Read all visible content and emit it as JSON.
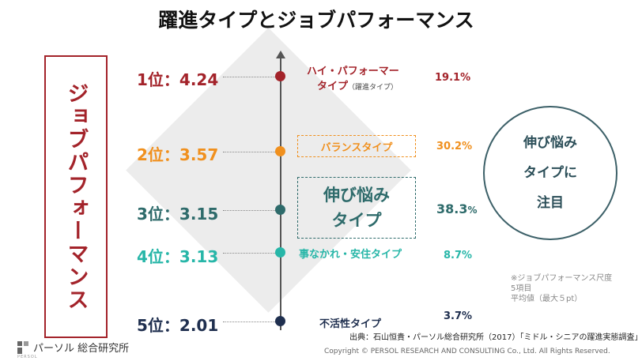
{
  "title": "躍進タイプとジョブパフォーマンス",
  "left_label": "ジョブパフォーマンス",
  "colors": {
    "rank1": "#a3232a",
    "rank2": "#f0901e",
    "rank3": "#2e6b6b",
    "rank4": "#27b6a8",
    "rank5": "#1f2f4f"
  },
  "rows": [
    {
      "rank": "1位：4.24",
      "type_line1": "ハイ・パフォーマー",
      "type_line2": "タイプ",
      "type_note": "（躍進タイプ）",
      "pct": "19.1%"
    },
    {
      "rank": "2位：3.57",
      "type_line1": "バランスタイプ",
      "pct": "30.2%"
    },
    {
      "rank": "3位：3.15",
      "type_line1": "伸び悩み",
      "type_line2": "タイプ",
      "pct": "38.3",
      "pct_unit": "%"
    },
    {
      "rank": "4位：3.13",
      "type_line1": "事なかれ・安住タイプ",
      "pct": "8.7%"
    },
    {
      "rank": "5位：2.01",
      "type_line1": "不活性タイプ",
      "pct": "3.7%"
    }
  ],
  "circle": {
    "line1": "伸び悩み",
    "line2": "タイプに",
    "line3": "注目"
  },
  "note": {
    "line1": "※ジョブパフォーマンス尺度",
    "line2": "5項目",
    "line3": "平均値（最大５pt）"
  },
  "source": "出典：石山恒貴・パーソル総合研究所（2017）「ミドル・シニアの躍進実態調査」",
  "copyright": "Copyright © PERSOL RESEARCH AND CONSULTING Co., Ltd. All Rights Reserved.",
  "logo": {
    "text": "パーソル 総合研究所",
    "sub": "PERSOL"
  }
}
